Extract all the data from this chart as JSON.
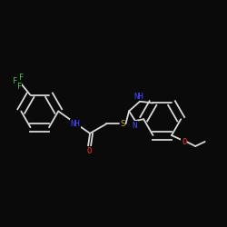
{
  "bg_color": "#0a0a0a",
  "line_color": "#d8d8d8",
  "atom_colors": {
    "N": "#4444ff",
    "O": "#ff3333",
    "S": "#ccaa00",
    "F": "#44cc44",
    "C": "#d8d8d8"
  },
  "lw": 1.3
}
